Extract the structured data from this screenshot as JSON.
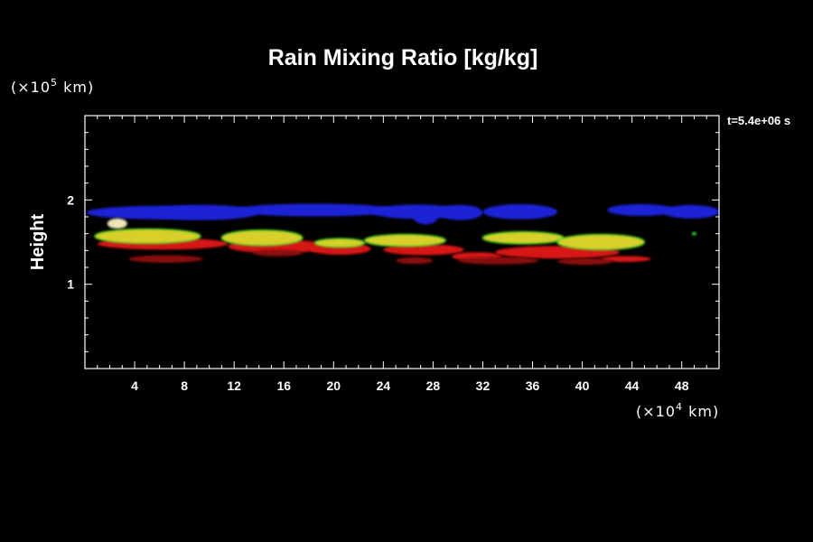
{
  "chart_data": {
    "type": "heatmap",
    "title": "Rain Mixing Ratio [kg/kg]",
    "ylabel": "Height",
    "y_unit": "(×10",
    "y_unit_exp": "5",
    "y_unit_tail": " km)",
    "x_unit": "(×10",
    "x_unit_exp": "4",
    "x_unit_tail": " km)",
    "time_label": "t=5.4e+06 s",
    "xlim": [
      0,
      51
    ],
    "ylim": [
      0,
      3
    ],
    "x_ticks": [
      {
        "value": 4,
        "label": "4"
      },
      {
        "value": 8,
        "label": "8"
      },
      {
        "value": 12,
        "label": "12"
      },
      {
        "value": 16,
        "label": "16"
      },
      {
        "value": 20,
        "label": "20"
      },
      {
        "value": 24,
        "label": "24"
      },
      {
        "value": 28,
        "label": "28"
      },
      {
        "value": 32,
        "label": "32"
      },
      {
        "value": 36,
        "label": "36"
      },
      {
        "value": 40,
        "label": "40"
      },
      {
        "value": 44,
        "label": "44"
      },
      {
        "value": 48,
        "label": "48"
      }
    ],
    "y_ticks": [
      {
        "value": 1,
        "label": "1"
      },
      {
        "value": 2,
        "label": "2"
      }
    ],
    "colors": {
      "blue_layer": "#1f24d6",
      "yellow_layer": "#d8cf2a",
      "green_edge": "#22dd22",
      "red_layer": "#d81414",
      "dark_red_core": "#8a0d0d",
      "white_highlight": "#efe7b8",
      "magenta_speck": "#ff33ff",
      "background": "#000000",
      "axes": "#ffffff"
    },
    "series": [
      {
        "band": "blue",
        "blobs": [
          [
            0.1,
            1.85,
            12.0,
            0.16
          ],
          [
            5.0,
            1.85,
            9.0,
            0.18
          ],
          [
            12.0,
            1.88,
            13.0,
            0.15
          ],
          [
            23.0,
            1.86,
            7.5,
            0.17
          ],
          [
            26.4,
            1.8,
            2.0,
            0.18
          ],
          [
            28.4,
            1.85,
            3.6,
            0.18
          ],
          [
            32.0,
            1.86,
            6.0,
            0.18
          ],
          [
            42.0,
            1.88,
            5.5,
            0.14
          ],
          [
            46.5,
            1.86,
            4.5,
            0.16
          ]
        ]
      },
      {
        "band": "red",
        "blobs": [
          [
            1.0,
            1.48,
            10.5,
            0.14
          ],
          [
            11.5,
            1.45,
            8.0,
            0.16
          ],
          [
            18.0,
            1.42,
            5.0,
            0.14
          ],
          [
            24.0,
            1.41,
            6.5,
            0.13
          ],
          [
            29.5,
            1.33,
            4.0,
            0.1
          ],
          [
            33.0,
            1.38,
            10.0,
            0.15
          ],
          [
            41.5,
            1.3,
            4.0,
            0.07
          ]
        ]
      },
      {
        "band": "dark_red",
        "blobs": [
          [
            3.5,
            1.3,
            6.0,
            0.09
          ],
          [
            13.5,
            1.37,
            4.0,
            0.08
          ],
          [
            25.0,
            1.28,
            3.0,
            0.08
          ],
          [
            30.0,
            1.28,
            6.5,
            0.09
          ],
          [
            38.0,
            1.27,
            4.5,
            0.08
          ]
        ]
      },
      {
        "band": "yellow",
        "blobs": [
          [
            0.8,
            1.57,
            8.5,
            0.17
          ],
          [
            11.0,
            1.55,
            6.5,
            0.18
          ],
          [
            18.5,
            1.49,
            4.0,
            0.1
          ],
          [
            22.5,
            1.52,
            6.5,
            0.14
          ],
          [
            32.0,
            1.55,
            6.5,
            0.14
          ],
          [
            38.0,
            1.5,
            7.0,
            0.18
          ]
        ]
      },
      {
        "band": "white",
        "blobs": [
          [
            1.8,
            1.72,
            1.6,
            0.12
          ]
        ]
      },
      {
        "band": "green",
        "blobs": [
          [
            48.8,
            1.6,
            0.4,
            0.04
          ]
        ]
      }
    ]
  }
}
